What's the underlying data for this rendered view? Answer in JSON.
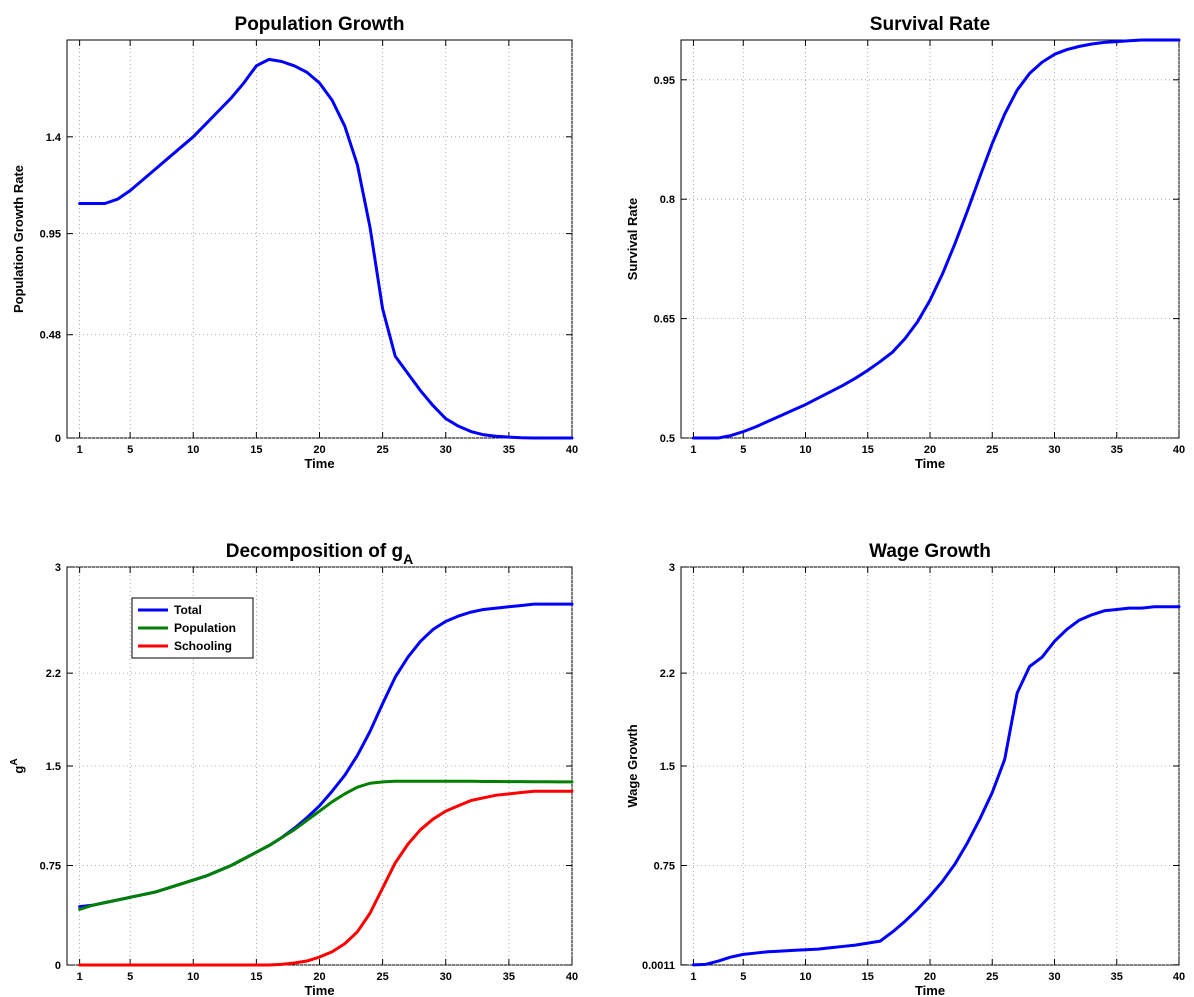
{
  "chart_data": [
    {
      "type": "line",
      "title": "Population Growth",
      "title_sub": "",
      "xlabel": "Time",
      "ylabel": "Population Growth Rate",
      "ylabel_sup": "",
      "xlim": [
        0,
        40
      ],
      "ylim": [
        0,
        1.85
      ],
      "xticks": [
        1,
        5,
        10,
        15,
        20,
        25,
        30,
        35,
        40
      ],
      "yticks": [
        0,
        0.48,
        0.95,
        1.4
      ],
      "ytick_labels": [
        "0",
        "0.48",
        "0.95",
        "1.4"
      ],
      "grid": true,
      "legend": null,
      "series": [
        {
          "color": "#0000ff",
          "x": [
            1,
            2,
            3,
            4,
            5,
            6,
            7,
            8,
            9,
            10,
            11,
            12,
            13,
            14,
            15,
            16,
            17,
            18,
            19,
            20,
            21,
            22,
            23,
            24,
            25,
            26,
            27,
            28,
            29,
            30,
            31,
            32,
            33,
            34,
            35,
            36,
            37,
            38,
            39,
            40
          ],
          "y": [
            1.09,
            1.09,
            1.09,
            1.11,
            1.15,
            1.2,
            1.25,
            1.3,
            1.35,
            1.4,
            1.46,
            1.52,
            1.58,
            1.65,
            1.73,
            1.76,
            1.75,
            1.73,
            1.7,
            1.65,
            1.57,
            1.45,
            1.27,
            0.98,
            0.6,
            0.38,
            0.3,
            0.22,
            0.15,
            0.09,
            0.055,
            0.03,
            0.015,
            0.008,
            0.004,
            0.001,
            0,
            0,
            0,
            0
          ]
        }
      ]
    },
    {
      "type": "line",
      "title": "Survival Rate",
      "title_sub": "",
      "xlabel": "Time",
      "ylabel": "Survival Rate",
      "ylabel_sup": "",
      "xlim": [
        0,
        40
      ],
      "ylim": [
        0.5,
        1.0
      ],
      "xticks": [
        1,
        5,
        10,
        15,
        20,
        25,
        30,
        35,
        40
      ],
      "yticks": [
        0.5,
        0.65,
        0.8,
        0.95
      ],
      "ytick_labels": [
        "0.5",
        "0.65",
        "0.8",
        "0.95"
      ],
      "grid": true,
      "legend": null,
      "series": [
        {
          "color": "#0000ff",
          "x": [
            1,
            2,
            3,
            4,
            5,
            6,
            7,
            8,
            9,
            10,
            11,
            12,
            13,
            14,
            15,
            16,
            17,
            18,
            19,
            20,
            21,
            22,
            23,
            24,
            25,
            26,
            27,
            28,
            29,
            30,
            31,
            32,
            33,
            34,
            35,
            36,
            37,
            38,
            39,
            40
          ],
          "y": [
            0.5,
            0.5,
            0.5,
            0.503,
            0.508,
            0.514,
            0.521,
            0.528,
            0.535,
            0.542,
            0.55,
            0.558,
            0.566,
            0.575,
            0.585,
            0.596,
            0.608,
            0.625,
            0.646,
            0.673,
            0.706,
            0.744,
            0.785,
            0.828,
            0.87,
            0.907,
            0.937,
            0.958,
            0.972,
            0.982,
            0.988,
            0.992,
            0.995,
            0.997,
            0.998,
            0.999,
            1.0,
            1.0,
            1.0,
            1.0
          ]
        }
      ]
    },
    {
      "type": "line",
      "title": "Decomposition of g",
      "title_sub": "A",
      "xlabel": "Time",
      "ylabel": "g",
      "ylabel_sup": "A",
      "xlim": [
        0,
        40
      ],
      "ylim": [
        0,
        3
      ],
      "xticks": [
        1,
        5,
        10,
        15,
        20,
        25,
        30,
        35,
        40
      ],
      "yticks": [
        0,
        0.75,
        1.5,
        2.2,
        3
      ],
      "ytick_labels": [
        "0",
        "0.75",
        "1.5",
        "2.2",
        "3"
      ],
      "grid": true,
      "legend": {
        "placement": "upper-left",
        "entries": [
          "Total",
          "Population",
          "Schooling"
        ]
      },
      "series": [
        {
          "name": "Total",
          "color": "#0000ff",
          "x": [
            1,
            2,
            3,
            4,
            5,
            6,
            7,
            8,
            9,
            10,
            11,
            12,
            13,
            14,
            15,
            16,
            17,
            18,
            19,
            20,
            21,
            22,
            23,
            24,
            25,
            26,
            27,
            28,
            29,
            30,
            31,
            32,
            33,
            34,
            35,
            36,
            37,
            38,
            39,
            40
          ],
          "y": [
            0.44,
            0.45,
            0.47,
            0.49,
            0.51,
            0.53,
            0.55,
            0.58,
            0.61,
            0.64,
            0.67,
            0.71,
            0.75,
            0.8,
            0.85,
            0.9,
            0.96,
            1.03,
            1.11,
            1.2,
            1.31,
            1.43,
            1.58,
            1.76,
            1.97,
            2.17,
            2.32,
            2.44,
            2.53,
            2.59,
            2.63,
            2.66,
            2.68,
            2.69,
            2.7,
            2.71,
            2.72,
            2.72,
            2.72,
            2.72
          ]
        },
        {
          "name": "Population",
          "color": "#008000",
          "x": [
            1,
            2,
            3,
            4,
            5,
            6,
            7,
            8,
            9,
            10,
            11,
            12,
            13,
            14,
            15,
            16,
            17,
            18,
            19,
            20,
            21,
            22,
            23,
            24,
            25,
            26,
            27,
            28,
            29,
            30,
            31,
            32,
            33,
            34,
            35,
            36,
            37,
            38,
            39,
            40
          ],
          "y": [
            0.42,
            0.45,
            0.47,
            0.49,
            0.51,
            0.53,
            0.55,
            0.58,
            0.61,
            0.64,
            0.67,
            0.71,
            0.75,
            0.8,
            0.85,
            0.9,
            0.96,
            1.02,
            1.09,
            1.16,
            1.23,
            1.29,
            1.34,
            1.37,
            1.38,
            1.385,
            1.385,
            1.385,
            1.385,
            1.385,
            1.385,
            1.385,
            1.383,
            1.383,
            1.382,
            1.382,
            1.381,
            1.381,
            1.38,
            1.38
          ]
        },
        {
          "name": "Schooling",
          "color": "#ff0000",
          "x": [
            1,
            2,
            3,
            4,
            5,
            6,
            7,
            8,
            9,
            10,
            11,
            12,
            13,
            14,
            15,
            16,
            17,
            18,
            19,
            20,
            21,
            22,
            23,
            24,
            25,
            26,
            27,
            28,
            29,
            30,
            31,
            32,
            33,
            34,
            35,
            36,
            37,
            38,
            39,
            40
          ],
          "y": [
            0,
            0,
            0,
            0,
            0,
            0,
            0,
            0,
            0,
            0,
            0,
            0,
            0,
            0,
            0,
            0,
            0.005,
            0.015,
            0.03,
            0.06,
            0.1,
            0.16,
            0.25,
            0.39,
            0.58,
            0.77,
            0.91,
            1.02,
            1.1,
            1.16,
            1.2,
            1.24,
            1.26,
            1.28,
            1.29,
            1.3,
            1.31,
            1.31,
            1.31,
            1.31
          ]
        }
      ]
    },
    {
      "type": "line",
      "title": "Wage Growth",
      "title_sub": "",
      "xlabel": "Time",
      "ylabel": "Wage Growth",
      "ylabel_sup": "",
      "xlim": [
        0,
        40
      ],
      "ylim": [
        0,
        3
      ],
      "xticks": [
        1,
        5,
        10,
        15,
        20,
        25,
        30,
        35,
        40
      ],
      "yticks": [
        0.0011,
        0.75,
        1.5,
        2.2,
        3
      ],
      "ytick_labels": [
        "0.0011",
        "0.75",
        "1.5",
        "2.2",
        "3"
      ],
      "grid": true,
      "legend": null,
      "series": [
        {
          "color": "#0000ff",
          "x": [
            1,
            2,
            3,
            4,
            5,
            6,
            7,
            8,
            9,
            10,
            11,
            12,
            13,
            14,
            15,
            16,
            17,
            18,
            19,
            20,
            21,
            22,
            23,
            24,
            25,
            26,
            27,
            28,
            29,
            30,
            31,
            32,
            33,
            34,
            35,
            36,
            37,
            38,
            39,
            40
          ],
          "y": [
            0.0011,
            0.005,
            0.03,
            0.06,
            0.08,
            0.09,
            0.1,
            0.105,
            0.11,
            0.115,
            0.12,
            0.13,
            0.14,
            0.15,
            0.165,
            0.18,
            0.25,
            0.33,
            0.42,
            0.52,
            0.63,
            0.76,
            0.92,
            1.1,
            1.3,
            1.55,
            2.05,
            2.25,
            2.32,
            2.44,
            2.53,
            2.6,
            2.64,
            2.67,
            2.68,
            2.69,
            2.69,
            2.7,
            2.7,
            2.7
          ]
        }
      ]
    }
  ]
}
